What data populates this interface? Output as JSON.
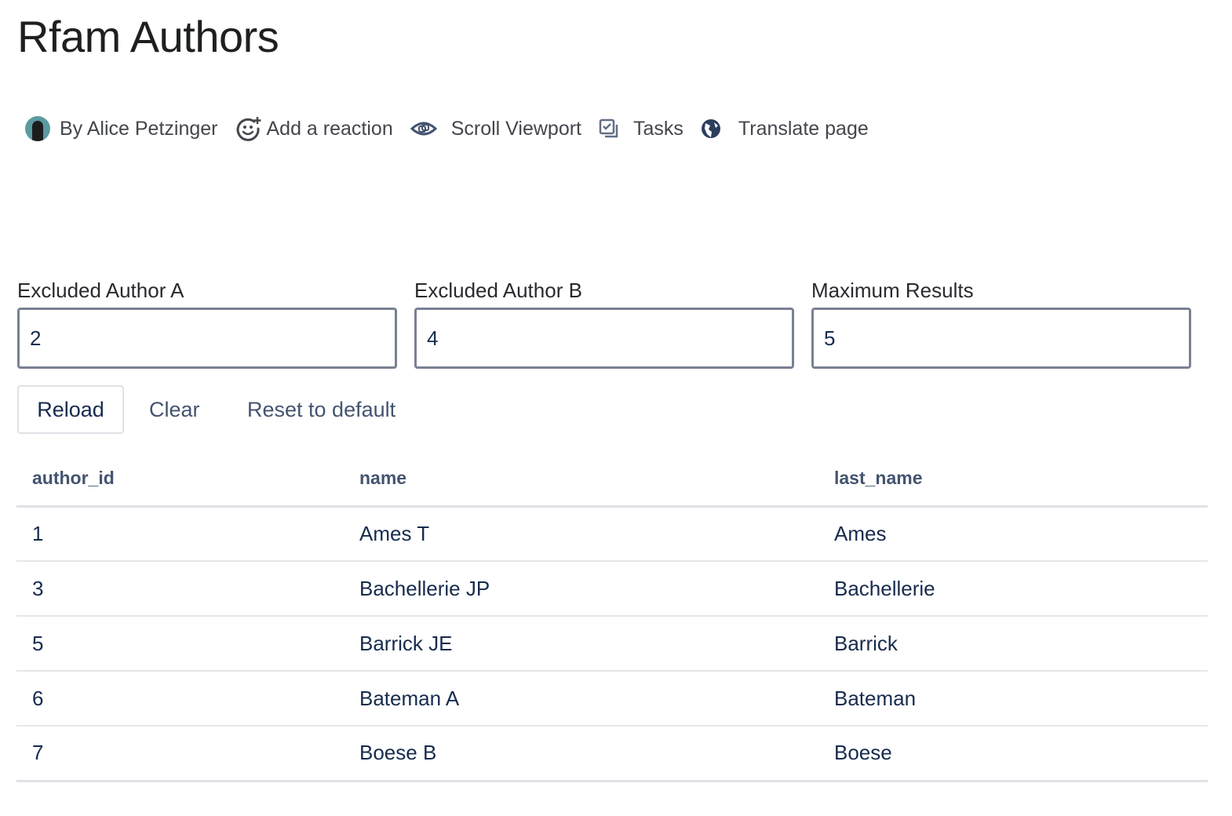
{
  "page": {
    "title": "Rfam Authors"
  },
  "byline": {
    "author": "By Alice Petzinger",
    "reaction": "Add a reaction",
    "scroll": "Scroll Viewport",
    "tasks": "Tasks",
    "translate": "Translate page"
  },
  "form": {
    "fields": [
      {
        "label": "Excluded Author A",
        "value": "2"
      },
      {
        "label": "Excluded Author B",
        "value": "4"
      },
      {
        "label": "Maximum Results",
        "value": "5"
      }
    ],
    "reload": "Reload",
    "clear": "Clear",
    "reset": "Reset to default"
  },
  "table": {
    "columns": [
      "author_id",
      "name",
      "last_name"
    ],
    "rows": [
      [
        "1",
        "Ames T",
        "Ames"
      ],
      [
        "3",
        "Bachellerie JP",
        "Bachellerie"
      ],
      [
        "5",
        "Barrick JE",
        "Barrick"
      ],
      [
        "6",
        "Bateman A",
        "Bateman"
      ],
      [
        "7",
        "Boese B",
        "Boese"
      ]
    ]
  }
}
